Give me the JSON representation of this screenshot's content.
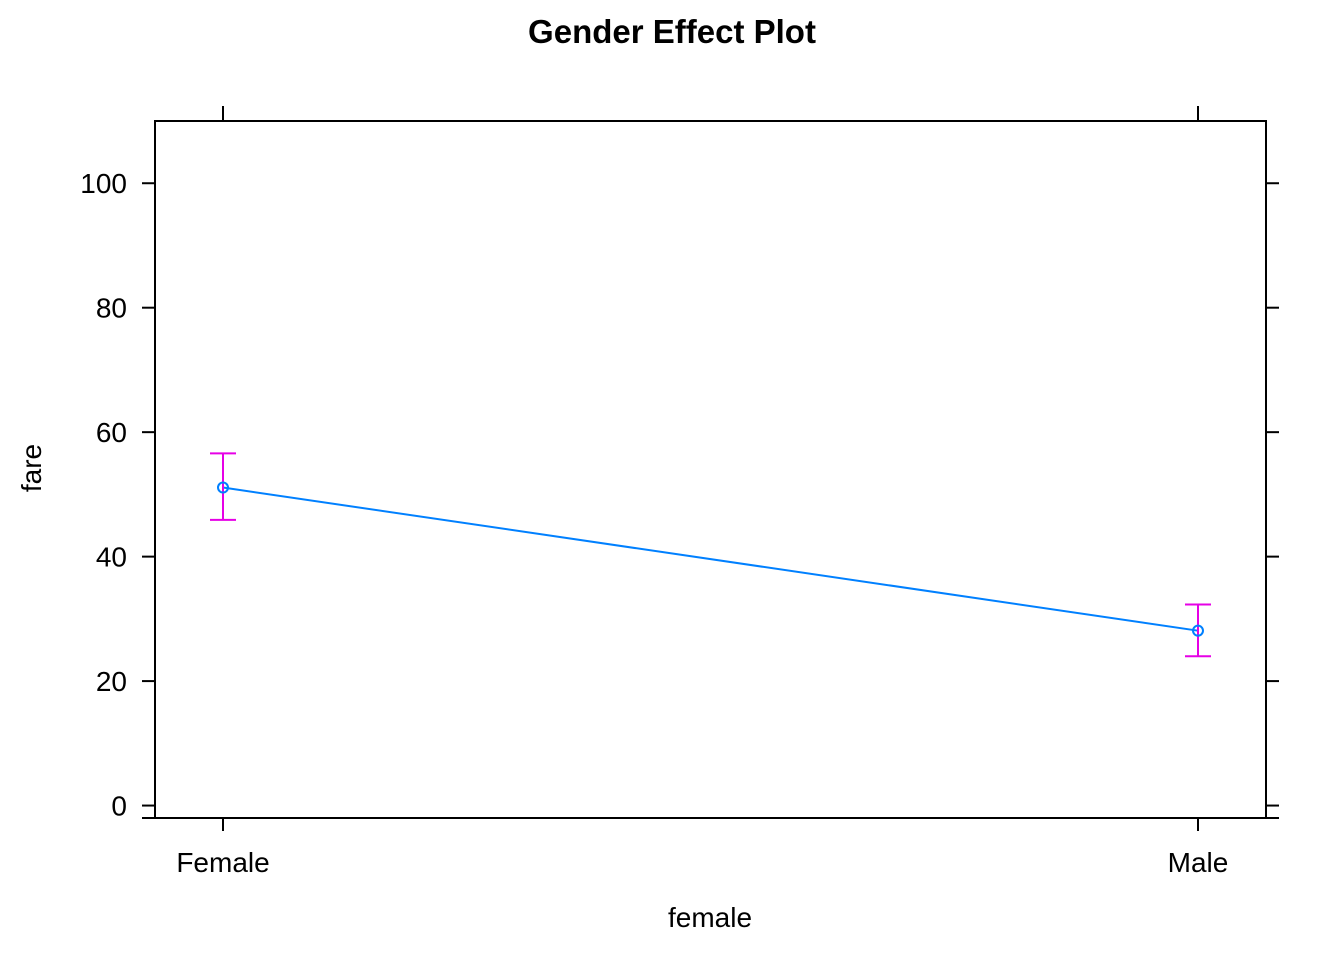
{
  "chart_data": {
    "type": "line",
    "title": "Gender Effect Plot",
    "xlabel": "female",
    "ylabel": "fare",
    "categories": [
      "Female",
      "Male"
    ],
    "series": [
      {
        "values": [
          51.1,
          28.1
        ],
        "lower": [
          45.9,
          24.0
        ],
        "upper": [
          56.6,
          32.3
        ]
      }
    ],
    "ylim": [
      -2,
      110
    ],
    "yticks": [
      0,
      20,
      40,
      60,
      80,
      100
    ],
    "grid": false,
    "colors": {
      "line": "#0080ff",
      "errorbar": "#e600e6",
      "axis": "#000000"
    }
  }
}
